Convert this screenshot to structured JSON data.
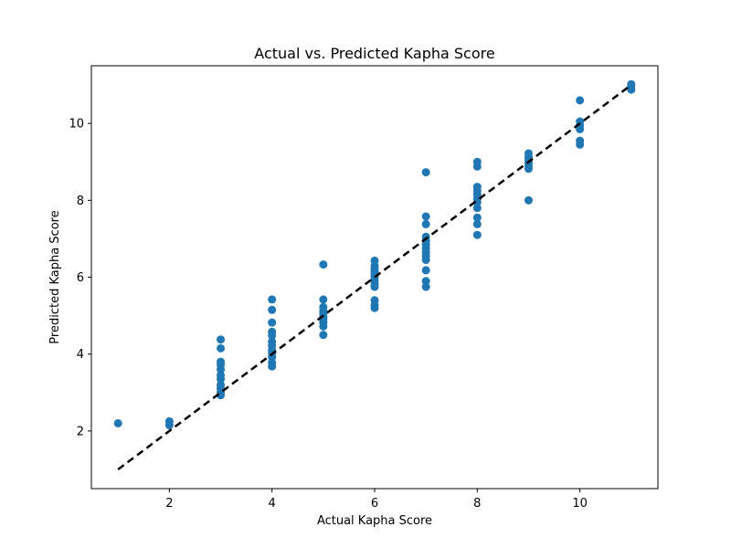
{
  "chart_data": {
    "type": "scatter",
    "title": "Actual vs. Predicted Kapha Score",
    "xlabel": "Actual Kapha Score",
    "ylabel": "Predicted Kapha Score",
    "xlim": [
      0.48,
      11.52
    ],
    "ylim": [
      0.5,
      11.5
    ],
    "xticks": [
      2,
      4,
      6,
      8,
      10
    ],
    "yticks": [
      2,
      4,
      6,
      8,
      10
    ],
    "grid": false,
    "marker_color": "#1f77b4",
    "reference_line": {
      "style": "dashed",
      "color": "#000000",
      "from": [
        1,
        1
      ],
      "to": [
        11,
        11
      ]
    },
    "series": [
      {
        "points": [
          [
            1,
            2.2
          ],
          [
            2,
            2.15
          ],
          [
            2,
            2.25
          ],
          [
            3,
            2.93
          ],
          [
            3,
            3.0
          ],
          [
            3,
            3.1
          ],
          [
            3,
            3.2
          ],
          [
            3,
            3.35
          ],
          [
            3,
            3.45
          ],
          [
            3,
            3.6
          ],
          [
            3,
            3.72
          ],
          [
            3,
            3.8
          ],
          [
            3,
            4.15
          ],
          [
            3,
            4.38
          ],
          [
            4,
            3.68
          ],
          [
            4,
            3.78
          ],
          [
            4,
            3.92
          ],
          [
            4,
            4.02
          ],
          [
            4,
            4.1
          ],
          [
            4,
            4.22
          ],
          [
            4,
            4.32
          ],
          [
            4,
            4.48
          ],
          [
            4,
            4.58
          ],
          [
            4,
            4.82
          ],
          [
            4,
            5.15
          ],
          [
            4,
            5.42
          ],
          [
            5,
            4.5
          ],
          [
            5,
            4.72
          ],
          [
            5,
            4.82
          ],
          [
            5,
            4.9
          ],
          [
            5,
            4.97
          ],
          [
            5,
            5.05
          ],
          [
            5,
            5.12
          ],
          [
            5,
            5.22
          ],
          [
            5,
            5.42
          ],
          [
            5,
            6.33
          ],
          [
            6,
            5.2
          ],
          [
            6,
            5.28
          ],
          [
            6,
            5.4
          ],
          [
            6,
            5.75
          ],
          [
            6,
            5.83
          ],
          [
            6,
            5.92
          ],
          [
            6,
            6.0
          ],
          [
            6,
            6.08
          ],
          [
            6,
            6.15
          ],
          [
            6,
            6.22
          ],
          [
            6,
            6.3
          ],
          [
            6,
            6.43
          ],
          [
            7,
            5.75
          ],
          [
            7,
            5.9
          ],
          [
            7,
            6.18
          ],
          [
            7,
            6.45
          ],
          [
            7,
            6.55
          ],
          [
            7,
            6.65
          ],
          [
            7,
            6.75
          ],
          [
            7,
            6.85
          ],
          [
            7,
            6.95
          ],
          [
            7,
            7.05
          ],
          [
            7,
            7.38
          ],
          [
            7,
            7.58
          ],
          [
            7,
            8.73
          ],
          [
            8,
            7.1
          ],
          [
            8,
            7.38
          ],
          [
            8,
            7.55
          ],
          [
            8,
            7.8
          ],
          [
            8,
            7.95
          ],
          [
            8,
            8.05
          ],
          [
            8,
            8.15
          ],
          [
            8,
            8.25
          ],
          [
            8,
            8.35
          ],
          [
            8,
            8.88
          ],
          [
            8,
            9.0
          ],
          [
            9,
            8.0
          ],
          [
            9,
            8.82
          ],
          [
            9,
            8.9
          ],
          [
            9,
            8.98
          ],
          [
            9,
            9.05
          ],
          [
            9,
            9.12
          ],
          [
            9,
            9.22
          ],
          [
            10,
            9.45
          ],
          [
            10,
            9.55
          ],
          [
            10,
            9.85
          ],
          [
            10,
            9.95
          ],
          [
            10,
            10.05
          ],
          [
            10,
            10.6
          ],
          [
            11,
            10.88
          ],
          [
            11,
            10.98
          ],
          [
            11,
            11.02
          ]
        ]
      }
    ]
  }
}
